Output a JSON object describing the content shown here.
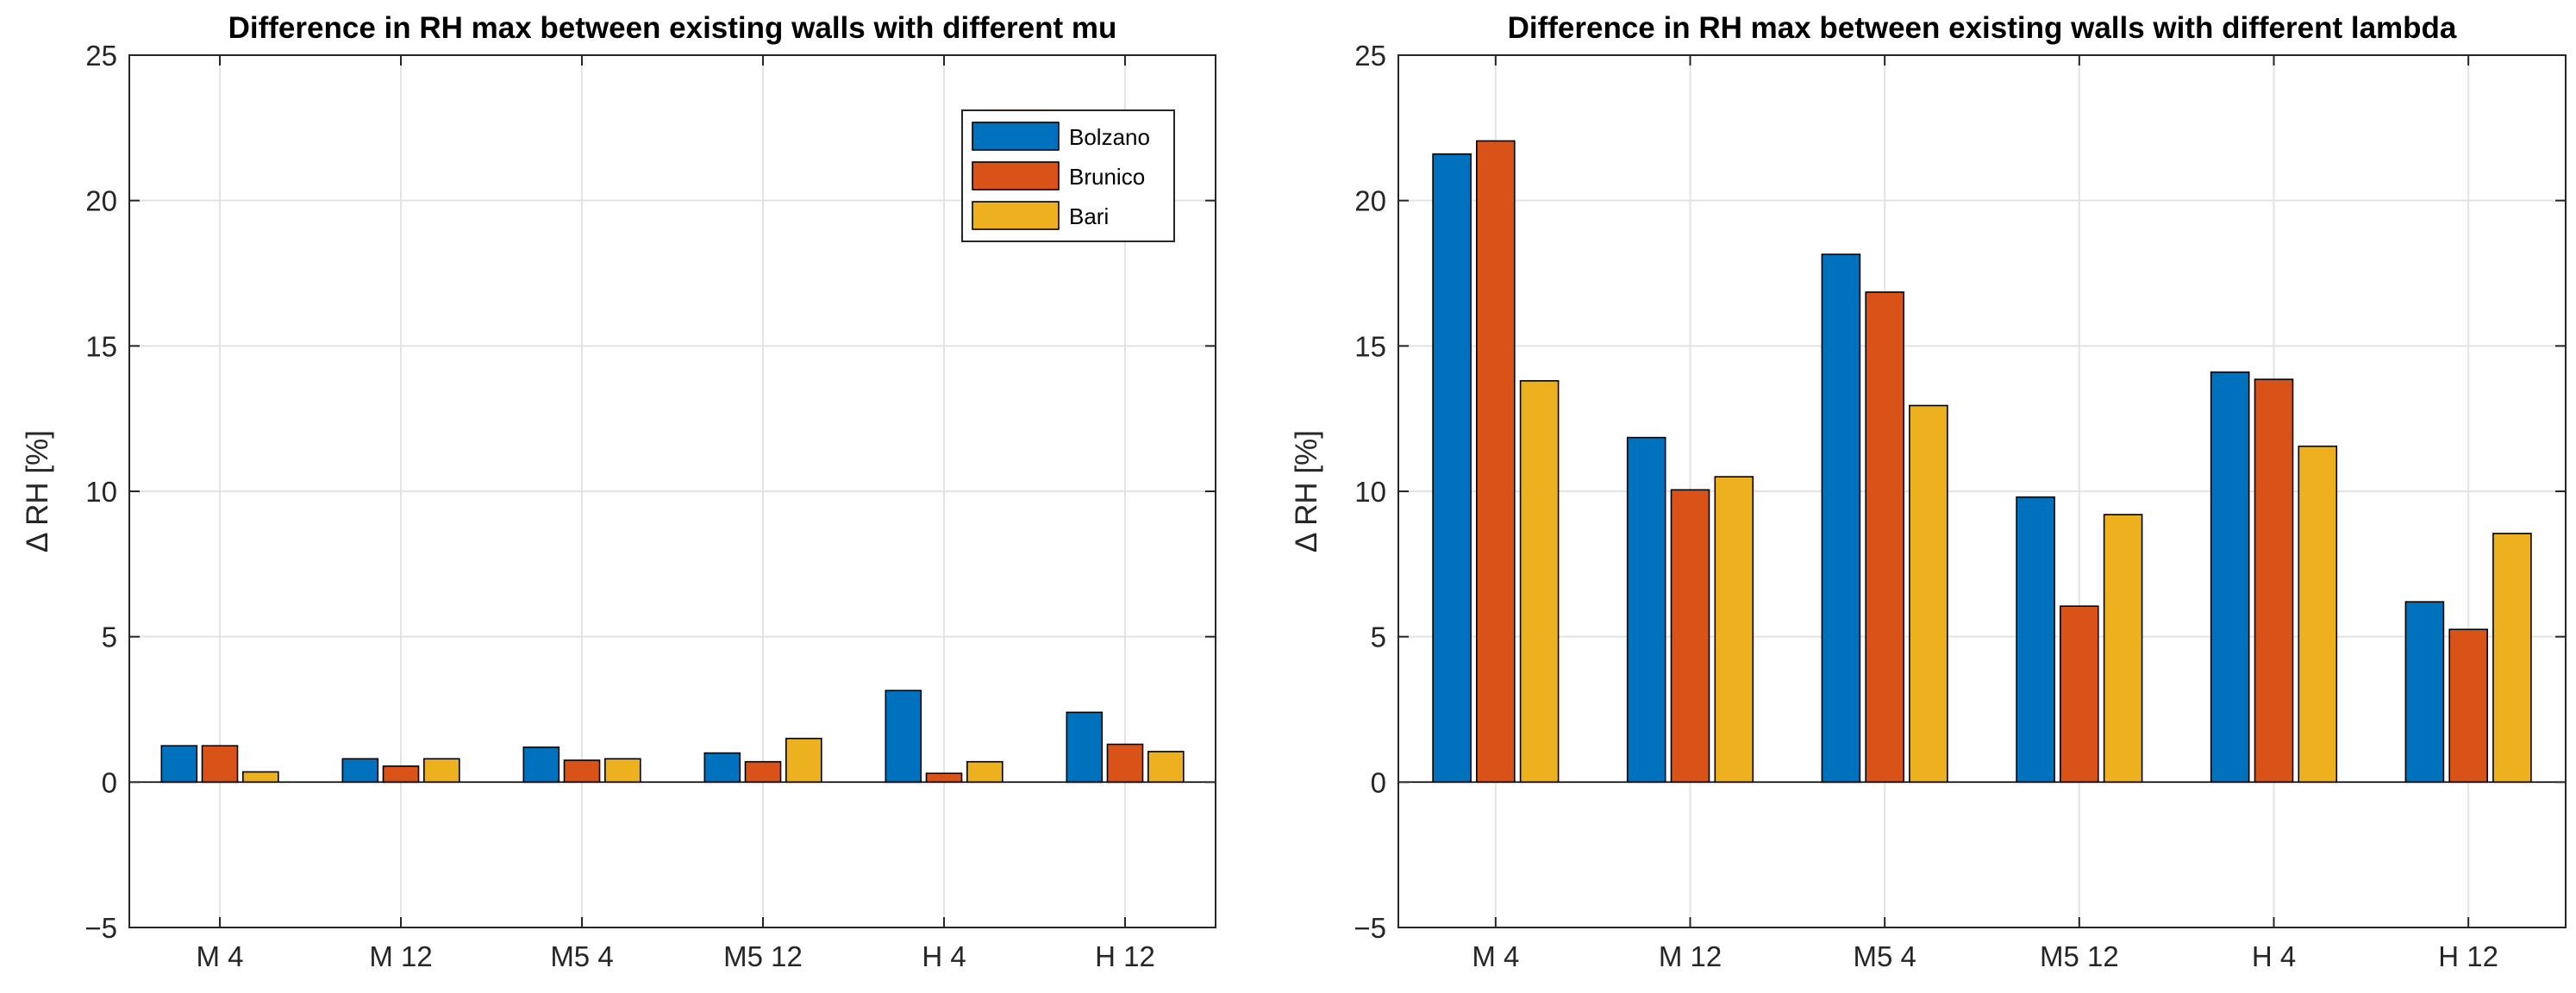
{
  "chart_data": [
    {
      "type": "bar",
      "title": "Difference in RH max between existing walls with different mu",
      "xlabel": "",
      "ylabel": "Δ RH [%]",
      "ylim": [
        -5,
        25
      ],
      "yticks": [
        -5,
        0,
        5,
        10,
        15,
        20,
        25
      ],
      "ytick_labels": [
        "−5",
        "0",
        "5",
        "10",
        "15",
        "20",
        "25"
      ],
      "grid": true,
      "legend": "top-right",
      "categories": [
        "M 4",
        "M 12",
        "M5 4",
        "M5 12",
        "H 4",
        "H 12"
      ],
      "series": [
        {
          "name": "Bolzano",
          "color": "#0072BD",
          "values": [
            1.25,
            0.8,
            1.2,
            1.0,
            3.15,
            2.4
          ]
        },
        {
          "name": "Brunico",
          "color": "#D95319",
          "values": [
            1.25,
            0.55,
            0.75,
            0.7,
            0.3,
            1.3
          ]
        },
        {
          "name": "Bari",
          "color": "#EDB120",
          "values": [
            0.35,
            0.8,
            0.8,
            1.5,
            0.7,
            1.05
          ]
        }
      ]
    },
    {
      "type": "bar",
      "title": "Difference in RH max between existing walls with different lambda",
      "xlabel": "",
      "ylabel": "Δ RH [%]",
      "ylim": [
        -5,
        25
      ],
      "yticks": [
        -5,
        0,
        5,
        10,
        15,
        20,
        25
      ],
      "ytick_labels": [
        "−5",
        "0",
        "5",
        "10",
        "15",
        "20",
        "25"
      ],
      "grid": true,
      "legend": "none",
      "categories": [
        "M 4",
        "M 12",
        "M5 4",
        "M5 12",
        "H 4",
        "H 12"
      ],
      "series": [
        {
          "name": "Bolzano",
          "color": "#0072BD",
          "values": [
            21.6,
            11.85,
            18.15,
            9.8,
            14.1,
            6.2
          ]
        },
        {
          "name": "Brunico",
          "color": "#D95319",
          "values": [
            22.05,
            10.05,
            16.85,
            6.05,
            13.85,
            5.25
          ]
        },
        {
          "name": "Bari",
          "color": "#EDB120",
          "values": [
            13.8,
            10.5,
            12.95,
            9.2,
            11.55,
            8.55
          ]
        }
      ]
    }
  ]
}
